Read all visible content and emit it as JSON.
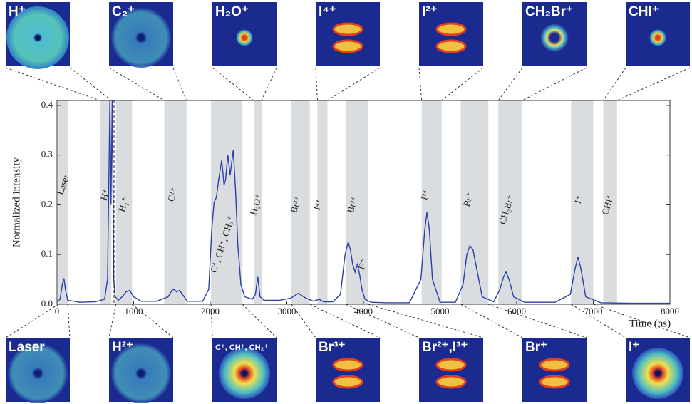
{
  "chart_data": {
    "type": "line",
    "xlabel": "Time (ns)",
    "ylabel": "Normalized intensity",
    "xlim": [
      0,
      8000
    ],
    "xticks": [
      0,
      1000,
      2000,
      3000,
      4000,
      5000,
      6000,
      7000,
      8000
    ],
    "ylim": [
      0,
      0.41
    ],
    "yticks": [
      {
        "value": 0,
        "label": "0.0"
      },
      0.1,
      0.2,
      0.3,
      0.4
    ],
    "x": [
      0,
      40,
      70,
      90,
      110,
      140,
      300,
      500,
      620,
      660,
      690,
      705,
      720,
      740,
      760,
      800,
      850,
      900,
      950,
      1000,
      1100,
      1300,
      1450,
      1500,
      1530,
      1560,
      1600,
      1700,
      1900,
      1980,
      2020,
      2050,
      2080,
      2110,
      2150,
      2180,
      2200,
      2230,
      2260,
      2300,
      2330,
      2360,
      2400,
      2450,
      2550,
      2590,
      2620,
      2650,
      2700,
      2900,
      3050,
      3150,
      3250,
      3350,
      3420,
      3480,
      3600,
      3700,
      3760,
      3800,
      3830,
      3860,
      3890,
      3920,
      3950,
      3980,
      4020,
      4100,
      4300,
      4600,
      4750,
      4800,
      4830,
      4860,
      4900,
      5000,
      5200,
      5300,
      5350,
      5390,
      5430,
      5480,
      5550,
      5700,
      5780,
      5830,
      5860,
      5900,
      5960,
      6100,
      6500,
      6700,
      6760,
      6800,
      6840,
      6900,
      7100,
      7500,
      8000
    ],
    "series": [
      {
        "color": "#2a3fa8",
        "values": [
          0.005,
          0.01,
          0.04,
          0.052,
          0.03,
          0.008,
          0.004,
          0.005,
          0.01,
          0.05,
          0.41,
          0.2,
          0.41,
          0.05,
          0.015,
          0.008,
          0.015,
          0.025,
          0.028,
          0.015,
          0.006,
          0.006,
          0.015,
          0.028,
          0.03,
          0.025,
          0.028,
          0.006,
          0.006,
          0.03,
          0.15,
          0.205,
          0.215,
          0.25,
          0.29,
          0.24,
          0.25,
          0.3,
          0.26,
          0.31,
          0.23,
          0.12,
          0.04,
          0.015,
          0.01,
          0.02,
          0.055,
          0.015,
          0.008,
          0.008,
          0.012,
          0.022,
          0.012,
          0.006,
          0.01,
          0.005,
          0.005,
          0.02,
          0.1,
          0.125,
          0.11,
          0.08,
          0.065,
          0.08,
          0.06,
          0.03,
          0.01,
          0.004,
          0.003,
          0.003,
          0.05,
          0.15,
          0.185,
          0.15,
          0.05,
          0.004,
          0.004,
          0.04,
          0.1,
          0.118,
          0.11,
          0.07,
          0.015,
          0.005,
          0.03,
          0.055,
          0.065,
          0.05,
          0.015,
          0.004,
          0.004,
          0.02,
          0.07,
          0.095,
          0.07,
          0.015,
          0.003,
          0.002,
          0.002
        ]
      }
    ],
    "bands": [
      [
        20,
        140
      ],
      [
        560,
        710
      ],
      [
        770,
        980
      ],
      [
        1400,
        1690
      ],
      [
        2010,
        2420
      ],
      [
        2570,
        2670
      ],
      [
        3060,
        3300
      ],
      [
        3400,
        3530
      ],
      [
        3770,
        4060
      ],
      [
        4760,
        5020
      ],
      [
        5270,
        5630
      ],
      [
        5760,
        6070
      ],
      [
        6710,
        7000
      ],
      [
        7130,
        7310
      ]
    ],
    "band_color": "#d9dde0",
    "peak_labels": [
      "Laser",
      "H⁺",
      "H₂⁺",
      "C²⁺",
      "C⁺, CH⁺, CH₂⁺",
      "H₂O⁺",
      "Br³⁺",
      "I⁴⁺",
      "Br²⁺",
      "I³⁺",
      "I²⁺",
      "Br⁺",
      "CH₂Br⁺",
      "I⁺",
      "CHI⁺"
    ]
  },
  "images": {
    "top": [
      "H⁺",
      "C₂⁺",
      "H₂O⁺",
      "I⁴⁺",
      "I²⁺",
      "CH₂Br⁺",
      "CHI⁺"
    ],
    "bottom": [
      "Laser",
      "H²⁺",
      "C⁺, CH⁺, CH₂⁺",
      "Br³⁺",
      "Br²⁺,I³⁺",
      "Br⁺",
      "I⁺"
    ]
  }
}
